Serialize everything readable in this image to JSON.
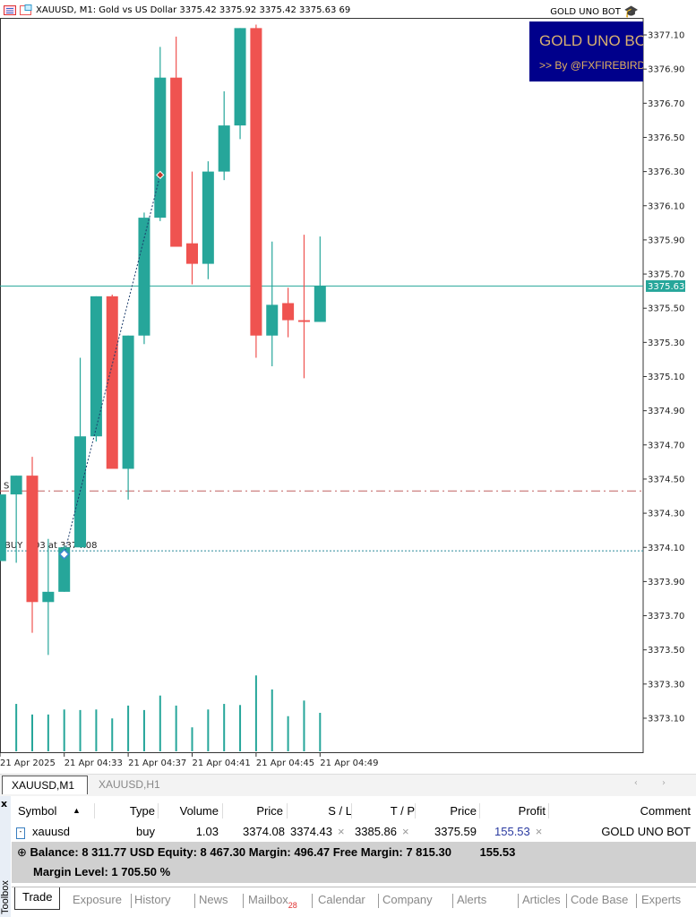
{
  "window": {
    "symbol_title": "XAUUSD, M1:  Gold vs US Dollar  3375.42 3375.92 3375.42 3375.63  69",
    "bot_name": "GOLD UNO BOT",
    "banner_title": "GOLD UNO BOT",
    "banner_subtitle": ">> By @FXFIREBIRD"
  },
  "colors": {
    "bull": "#26a69a",
    "bear": "#ef5350",
    "current_price_line": "#26a69a",
    "stop_loss_line": "#c06060",
    "entry_line": "#2a8a9a",
    "banner_bg": "#00008b"
  },
  "chart_data": {
    "type": "candlestick",
    "symbol": "XAUUSD",
    "timeframe": "M1",
    "ylim": [
      3372.92,
      3377.2
    ],
    "y_ticks": [
      "3377.10",
      "3376.90",
      "3376.70",
      "3376.50",
      "3376.30",
      "3376.10",
      "3375.90",
      "3375.70",
      "3375.50",
      "3375.30",
      "3375.10",
      "3374.90",
      "3374.70",
      "3374.50",
      "3374.30",
      "3374.10",
      "3373.90",
      "3373.70",
      "3373.50",
      "3373.30",
      "3373.10"
    ],
    "x_tick_labels": [
      "21 Apr 2025",
      "21 Apr 04:33",
      "21 Apr 04:37",
      "21 Apr 04:41",
      "21 Apr 04:45",
      "21 Apr 04:49"
    ],
    "candles": [
      {
        "t": "04:29",
        "o": 3374.02,
        "h": 3374.41,
        "l": 3374.02,
        "c": 3374.41,
        "v": null
      },
      {
        "t": "04:30",
        "o": 3374.41,
        "h": 3374.52,
        "l": 3374.01,
        "c": 3374.52,
        "v": 85
      },
      {
        "t": "04:31",
        "o": 3374.52,
        "h": 3374.63,
        "l": 3373.6,
        "c": 3373.78,
        "v": 66
      },
      {
        "t": "04:32",
        "o": 3373.78,
        "h": 3374.15,
        "l": 3373.47,
        "c": 3373.84,
        "v": 66
      },
      {
        "t": "04:33",
        "o": 3373.84,
        "h": 3374.11,
        "l": 3373.84,
        "c": 3374.1,
        "v": 75
      },
      {
        "t": "04:34",
        "o": 3374.1,
        "h": 3375.21,
        "l": 3374.1,
        "c": 3374.75,
        "v": 74
      },
      {
        "t": "04:35",
        "o": 3374.75,
        "h": 3375.57,
        "l": 3374.72,
        "c": 3375.57,
        "v": 75
      },
      {
        "t": "04:36",
        "o": 3375.57,
        "h": 3375.58,
        "l": 3374.56,
        "c": 3374.56,
        "v": 59
      },
      {
        "t": "04:37",
        "o": 3374.56,
        "h": 3375.34,
        "l": 3374.38,
        "c": 3375.34,
        "v": 82
      },
      {
        "t": "04:38",
        "o": 3375.34,
        "h": 3376.06,
        "l": 3375.29,
        "c": 3376.03,
        "v": 74
      },
      {
        "t": "04:39",
        "o": 3376.03,
        "h": 3377.03,
        "l": 3376.01,
        "c": 3376.85,
        "v": 100
      },
      {
        "t": "04:40",
        "o": 3376.85,
        "h": 3377.09,
        "l": 3375.86,
        "c": 3375.86,
        "v": 82
      },
      {
        "t": "04:41",
        "o": 3375.88,
        "h": 3376.3,
        "l": 3375.64,
        "c": 3375.76,
        "v": 43
      },
      {
        "t": "04:42",
        "o": 3375.76,
        "h": 3376.36,
        "l": 3375.67,
        "c": 3376.3,
        "v": 75
      },
      {
        "t": "04:43",
        "o": 3376.3,
        "h": 3376.77,
        "l": 3376.25,
        "c": 3376.57,
        "v": 85
      },
      {
        "t": "04:44",
        "o": 3376.57,
        "h": 3377.14,
        "l": 3376.49,
        "c": 3377.14,
        "v": 83
      },
      {
        "t": "04:45",
        "o": 3377.14,
        "h": 3377.16,
        "l": 3375.21,
        "c": 3375.34,
        "v": 136
      },
      {
        "t": "04:46",
        "o": 3375.34,
        "h": 3375.89,
        "l": 3375.16,
        "c": 3375.52,
        "v": 111
      },
      {
        "t": "04:47",
        "o": 3375.53,
        "h": 3375.62,
        "l": 3375.33,
        "c": 3375.43,
        "v": 63
      },
      {
        "t": "04:48",
        "o": 3375.43,
        "h": 3375.93,
        "l": 3375.09,
        "c": 3375.42,
        "v": 91
      },
      {
        "t": "04:49",
        "o": 3375.42,
        "h": 3375.92,
        "l": 3375.42,
        "c": 3375.63,
        "v": 69
      }
    ],
    "current_price": 3375.63,
    "current_price_label": "3375.63",
    "stop_loss_price": 3374.43,
    "stop_loss_label": "S",
    "entry_price": 3374.08,
    "entry_label": "BUY 1.03 at 3374.08",
    "trade_marks": [
      {
        "t": "04:33",
        "price": 3374.06,
        "kind": "buy"
      },
      {
        "t": "04:39",
        "price": 3376.28,
        "kind": "exit"
      }
    ]
  },
  "chart_tabs": [
    {
      "label": "XAUUSD,M1",
      "active": true
    },
    {
      "label": "XAUUSD,H1",
      "active": false
    }
  ],
  "toolbox": {
    "close_label": "x",
    "title": "Toolbox",
    "columns": [
      "Symbol",
      "Type",
      "Volume",
      "Price",
      "S / L",
      "T / P",
      "Price",
      "Profit",
      "Comment"
    ],
    "sort_indicator": "▲",
    "rows": [
      {
        "symbol": "xauusd",
        "type": "buy",
        "volume": "1.03",
        "open_price": "3374.08",
        "sl": "3374.43",
        "tp": "3385.86",
        "price": "3375.59",
        "profit": "155.53",
        "comment": "GOLD UNO BOT"
      }
    ],
    "remove_icon": "×",
    "summary_line1": "Balance: 8 311.77 USD  Equity: 8 467.30  Margin: 496.47  Free Margin: 7 815.30",
    "summary_profit": "155.53",
    "summary_line2": "Margin Level: 1 705.50 %",
    "tabs": [
      {
        "label": "Trade",
        "active": true
      },
      {
        "label": "Exposure"
      },
      {
        "label": "History"
      },
      {
        "label": "News"
      },
      {
        "label": "Mailbox",
        "badge": "28"
      },
      {
        "label": "Calendar"
      },
      {
        "label": "Company"
      },
      {
        "label": "Alerts"
      },
      {
        "label": "Articles"
      },
      {
        "label": "Code Base"
      },
      {
        "label": "Experts"
      }
    ]
  }
}
